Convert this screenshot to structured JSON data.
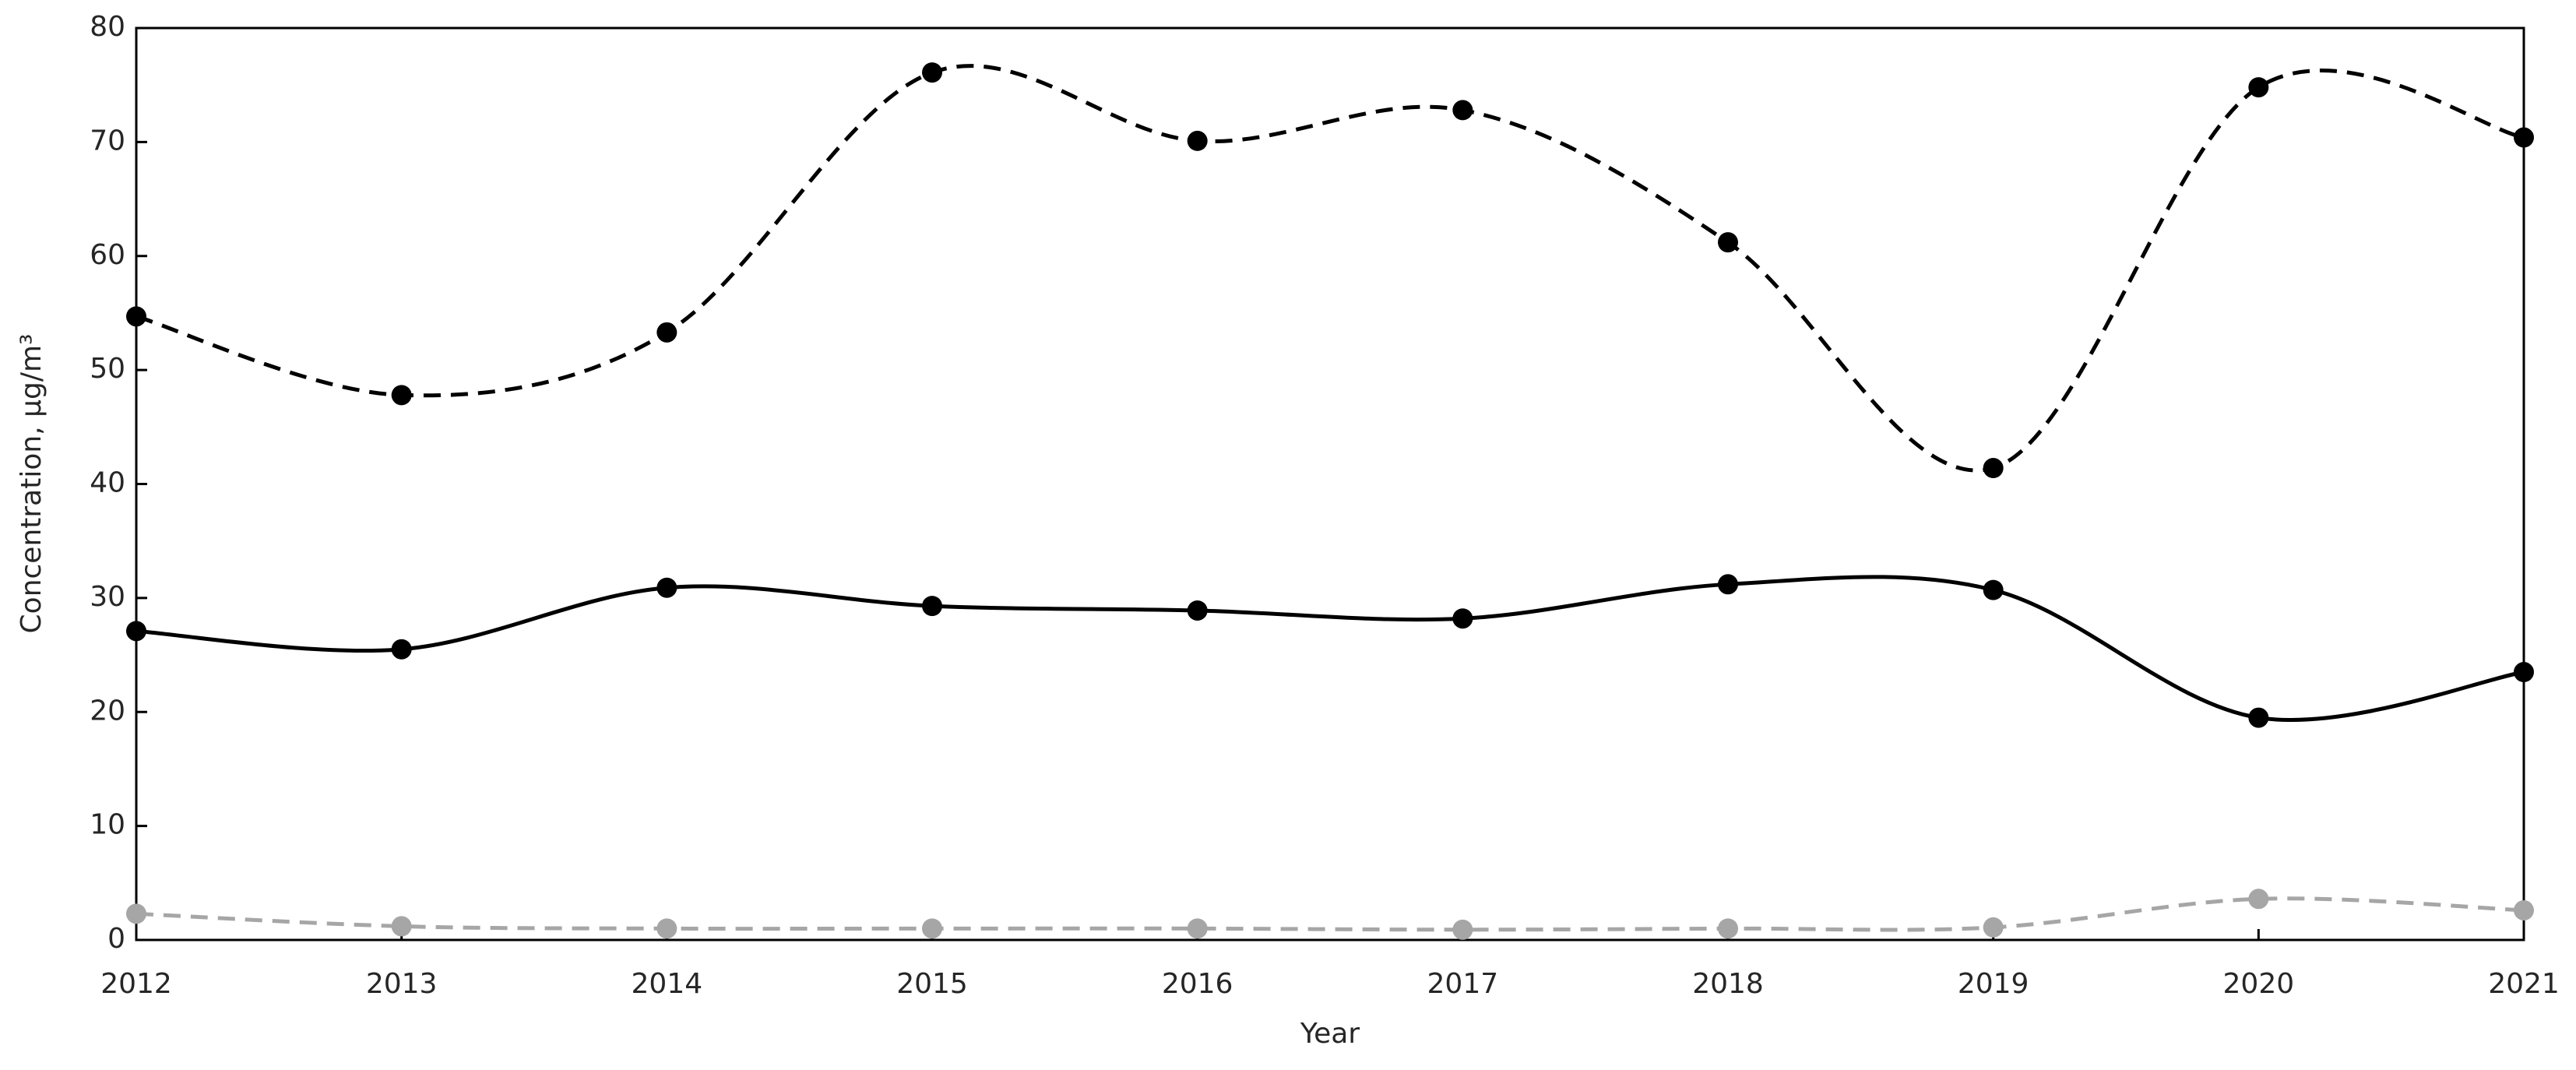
{
  "chart_data": {
    "type": "line",
    "x": [
      2012,
      2013,
      2014,
      2015,
      2016,
      2017,
      2018,
      2019,
      2020,
      2021
    ],
    "xlim": [
      2012,
      2021
    ],
    "xticks": [
      2012,
      2013,
      2014,
      2015,
      2016,
      2017,
      2018,
      2019,
      2020,
      2021
    ],
    "ylim": [
      0,
      80
    ],
    "yticks": [
      0,
      10,
      20,
      30,
      40,
      50,
      60,
      70,
      80
    ],
    "x_label": "Year",
    "y_label": "Concentration, μg/m³",
    "series": [
      {
        "color": "#000000",
        "linestyle": "dashed",
        "values": [
          54.7,
          47.8,
          53.3,
          76.1,
          70.1,
          72.8,
          61.2,
          41.4,
          74.8,
          70.4
        ]
      },
      {
        "color": "#000000",
        "linestyle": "solid",
        "values": [
          27.1,
          25.5,
          30.9,
          29.3,
          28.9,
          28.2,
          31.2,
          30.7,
          19.5,
          23.5
        ]
      },
      {
        "color": "#a6a6a6",
        "linestyle": "dashed",
        "values": [
          2.3,
          1.2,
          1.0,
          1.0,
          1.0,
          0.9,
          1.0,
          1.1,
          3.6,
          2.6
        ]
      }
    ]
  }
}
